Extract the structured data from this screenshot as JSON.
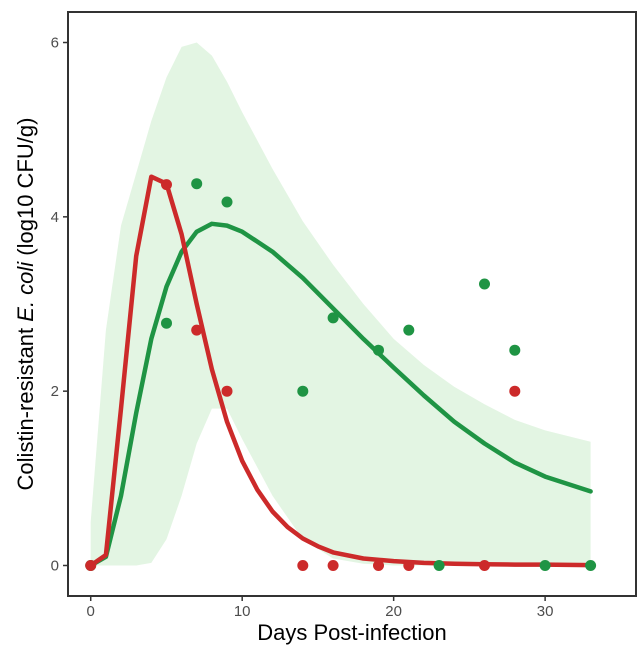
{
  "chart_data": {
    "type": "line",
    "xlabel": "Days Post-infection",
    "ylabel": {
      "prefix": "Colistin-resistant ",
      "italic": "E. coli",
      "suffix": " (log10 CFU/g)"
    },
    "xlim": [
      -1.5,
      36
    ],
    "ylim": [
      -0.35,
      6.35
    ],
    "x_ticks": [
      0,
      10,
      20,
      30
    ],
    "y_ticks": [
      0,
      2,
      4,
      6
    ],
    "grid": false,
    "legend": "none",
    "band": {
      "color": "#e3f5e3",
      "x": [
        0,
        1,
        2,
        3,
        4,
        5,
        6,
        7,
        8,
        9,
        10,
        12,
        14,
        16,
        18,
        20,
        22,
        24,
        26,
        28,
        30,
        33
      ],
      "upper": [
        0.5,
        2.7,
        3.9,
        4.5,
        5.1,
        5.6,
        5.95,
        6.0,
        5.85,
        5.55,
        5.2,
        4.55,
        3.95,
        3.45,
        3.0,
        2.6,
        2.3,
        2.05,
        1.85,
        1.67,
        1.55,
        1.42
      ],
      "lower": [
        0,
        0,
        0,
        0,
        0.03,
        0.3,
        0.8,
        1.4,
        1.8,
        1.8,
        1.45,
        0.8,
        0.3,
        0.08,
        0.02,
        0,
        0,
        0,
        0,
        0,
        0,
        0
      ]
    },
    "series": [
      {
        "color": "#1f9444",
        "line_x": [
          0,
          1,
          2,
          3,
          4,
          5,
          6,
          7,
          8,
          9,
          10,
          12,
          14,
          16,
          18,
          20,
          22,
          24,
          26,
          28,
          30,
          33
        ],
        "line_y": [
          0,
          0.1,
          0.8,
          1.75,
          2.6,
          3.2,
          3.6,
          3.83,
          3.92,
          3.9,
          3.83,
          3.6,
          3.3,
          2.95,
          2.6,
          2.27,
          1.95,
          1.65,
          1.4,
          1.18,
          1.02,
          0.85
        ],
        "points_x": [
          0,
          5,
          7,
          9,
          14,
          16,
          19,
          21,
          23,
          26,
          28,
          30,
          33
        ],
        "points_y": [
          0,
          2.78,
          4.38,
          4.17,
          2.0,
          2.84,
          2.47,
          2.7,
          0,
          3.23,
          2.47,
          0,
          0
        ]
      },
      {
        "color": "#cc2a2a",
        "line_x": [
          0,
          1,
          2,
          3,
          4,
          5,
          6,
          7,
          8,
          9,
          10,
          11,
          12,
          13,
          14,
          15,
          16,
          18,
          20,
          22,
          24,
          26,
          28,
          30,
          33
        ],
        "line_y": [
          0,
          0.12,
          1.8,
          3.55,
          4.46,
          4.38,
          3.8,
          3.0,
          2.25,
          1.65,
          1.2,
          0.87,
          0.62,
          0.44,
          0.31,
          0.22,
          0.15,
          0.08,
          0.05,
          0.03,
          0.02,
          0.015,
          0.01,
          0.01,
          0.005
        ],
        "points_x": [
          0,
          5,
          7,
          9,
          14,
          16,
          19,
          21,
          26,
          28
        ],
        "points_y": [
          0,
          4.37,
          2.7,
          2.0,
          0,
          0,
          0,
          0,
          0,
          2.0
        ]
      }
    ]
  }
}
